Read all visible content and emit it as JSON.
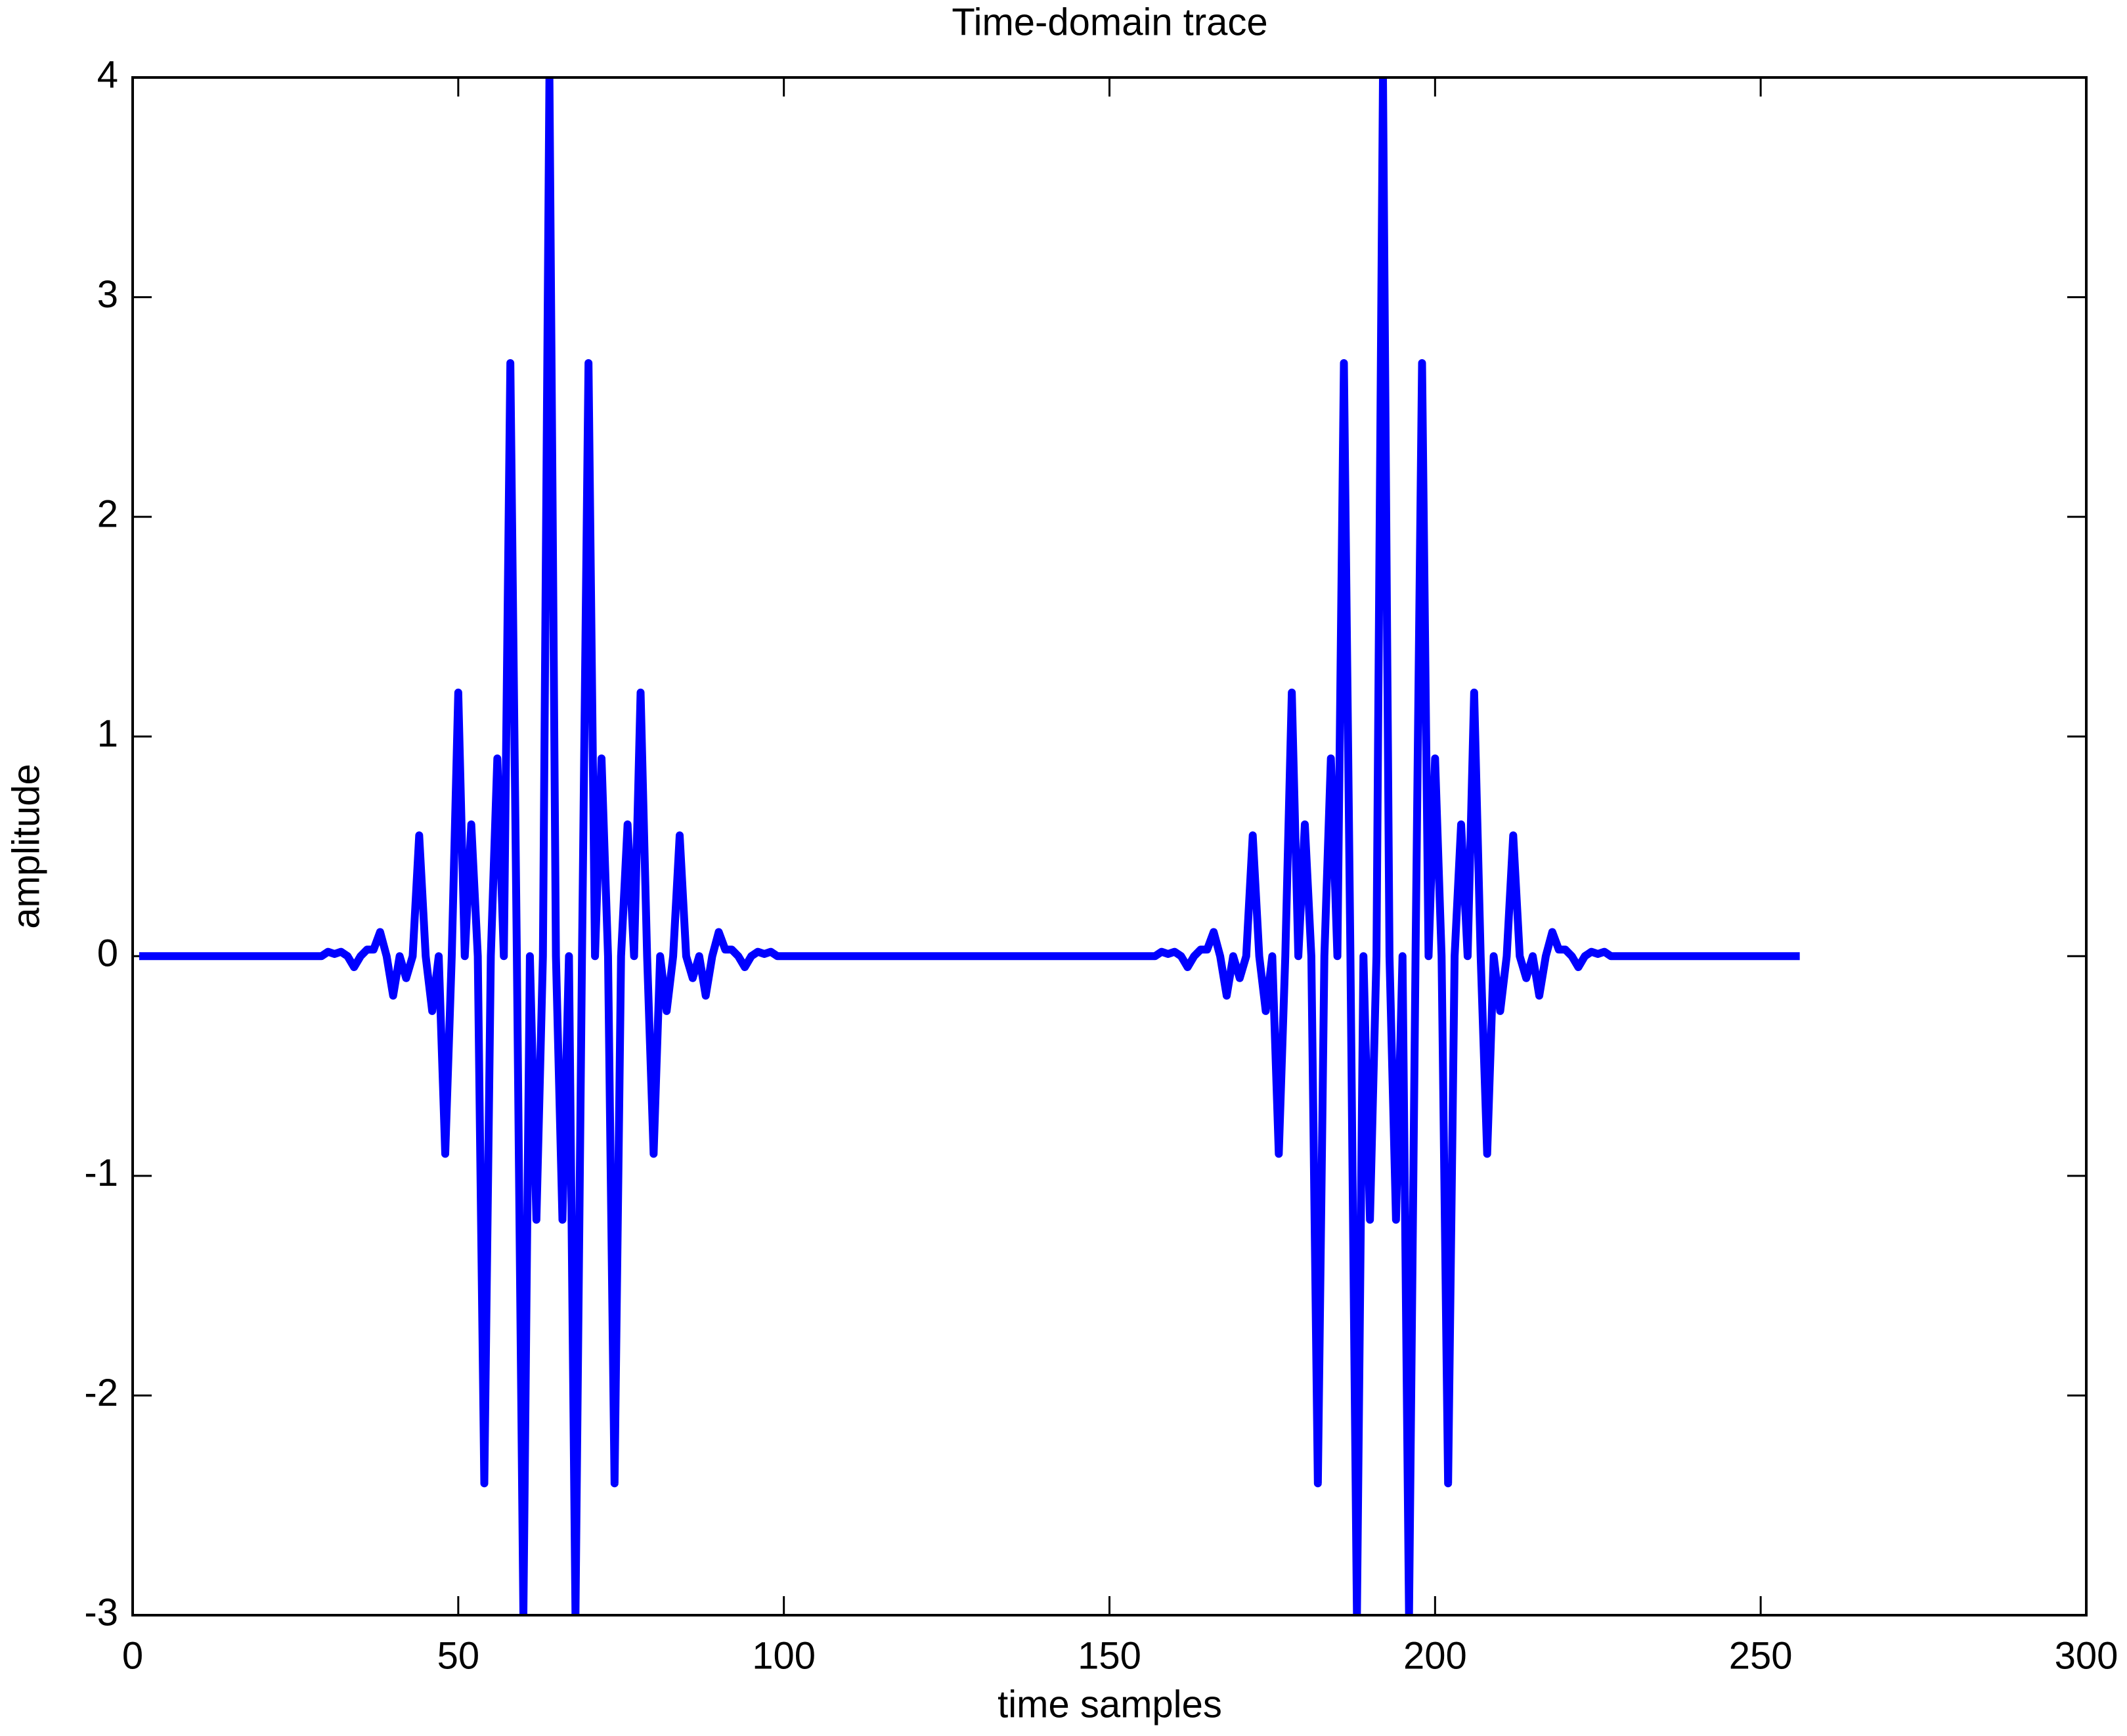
{
  "chart_data": {
    "type": "line",
    "title": "Time-domain trace",
    "x_label": "time samples",
    "y_label": "amplitude",
    "xlim": [
      0,
      300
    ],
    "ylim": [
      -3,
      4
    ],
    "xticks": [
      0,
      50,
      100,
      150,
      200,
      250,
      300
    ],
    "yticks": [
      -3,
      -2,
      -1,
      0,
      1,
      2,
      3,
      4
    ],
    "grid": false,
    "x": [
      1,
      2,
      3,
      4,
      5,
      6,
      7,
      8,
      9,
      10,
      11,
      12,
      13,
      14,
      15,
      16,
      17,
      18,
      19,
      20,
      21,
      22,
      23,
      24,
      25,
      26,
      27,
      28,
      29,
      30,
      31,
      32,
      33,
      34,
      35,
      36,
      37,
      38,
      39,
      40,
      41,
      42,
      43,
      44,
      45,
      46,
      47,
      48,
      49,
      50,
      51,
      52,
      53,
      54,
      55,
      56,
      57,
      58,
      59,
      60,
      61,
      62,
      63,
      64,
      65,
      66,
      67,
      68,
      69,
      70,
      71,
      72,
      73,
      74,
      75,
      76,
      77,
      78,
      79,
      80,
      81,
      82,
      83,
      84,
      85,
      86,
      87,
      88,
      89,
      90,
      91,
      92,
      93,
      94,
      95,
      96,
      97,
      98,
      99,
      100,
      101,
      102,
      103,
      104,
      105,
      106,
      107,
      108,
      109,
      110,
      111,
      112,
      113,
      114,
      115,
      116,
      117,
      118,
      119,
      120,
      121,
      122,
      123,
      124,
      125,
      126,
      127,
      128,
      129,
      130,
      131,
      132,
      133,
      134,
      135,
      136,
      137,
      138,
      139,
      140,
      141,
      142,
      143,
      144,
      145,
      146,
      147,
      148,
      149,
      150,
      151,
      152,
      153,
      154,
      155,
      156,
      157,
      158,
      159,
      160,
      161,
      162,
      163,
      164,
      165,
      166,
      167,
      168,
      169,
      170,
      171,
      172,
      173,
      174,
      175,
      176,
      177,
      178,
      179,
      180,
      181,
      182,
      183,
      184,
      185,
      186,
      187,
      188,
      189,
      190,
      191,
      192,
      193,
      194,
      195,
      196,
      197,
      198,
      199,
      200,
      201,
      202,
      203,
      204,
      205,
      206,
      207,
      208,
      209,
      210,
      211,
      212,
      213,
      214,
      215,
      216,
      217,
      218,
      219,
      220,
      221,
      222,
      223,
      224,
      225,
      226,
      227,
      228,
      229,
      230,
      231,
      232,
      233,
      234,
      235,
      236,
      237,
      238,
      239,
      240,
      241,
      242,
      243,
      244,
      245,
      246,
      247,
      248,
      249,
      250,
      251,
      252,
      253,
      254,
      255,
      256
    ],
    "series": [
      {
        "color": "#0000ff",
        "values": [
          0,
          0,
          0,
          0,
          0,
          0,
          0,
          0,
          0,
          0,
          0,
          0,
          0,
          0,
          0,
          0,
          0,
          0,
          0,
          0,
          0,
          0,
          0,
          0,
          0,
          0,
          0,
          0,
          0,
          0.02,
          0.01,
          0.02,
          0,
          -0.05,
          0,
          0.03,
          0.03,
          0.11,
          0,
          -0.18,
          0,
          -0.1,
          0,
          0.55,
          0,
          -0.25,
          0,
          -0.9,
          0,
          1.2,
          0,
          0.6,
          0,
          -2.4,
          0,
          0.9,
          0,
          2.7,
          0,
          -3,
          0,
          -1.2,
          0,
          4,
          0,
          -1.2,
          0,
          -3,
          0,
          2.7,
          0,
          0.9,
          0,
          -2.4,
          0,
          0.6,
          0,
          1.2,
          0,
          -0.9,
          0,
          -0.25,
          0,
          0.55,
          0,
          -0.1,
          0,
          -0.18,
          0,
          0.11,
          0.03,
          0.03,
          0,
          -0.05,
          0,
          0.02,
          0.01,
          0.02,
          0,
          0,
          0,
          0,
          0,
          0,
          0,
          0,
          0,
          0,
          0,
          0,
          0,
          0,
          0,
          0,
          0,
          0,
          0,
          0,
          0,
          0,
          0,
          0,
          0,
          0,
          0,
          0,
          0,
          0,
          0,
          0,
          0,
          0,
          0,
          0,
          0,
          0,
          0,
          0,
          0,
          0,
          0,
          0,
          0,
          0,
          0,
          0,
          0,
          0,
          0,
          0,
          0,
          0,
          0,
          0,
          0,
          0,
          0,
          0.02,
          0.01,
          0.02,
          0,
          -0.05,
          0,
          0.03,
          0.03,
          0.11,
          0,
          -0.18,
          0,
          -0.1,
          0,
          0.55,
          0,
          -0.25,
          0,
          -0.9,
          0,
          1.2,
          0,
          0.6,
          0,
          -2.4,
          0,
          0.9,
          0,
          2.7,
          0,
          -3,
          0,
          -1.2,
          0,
          4,
          0,
          -1.2,
          0,
          -3,
          0,
          2.7,
          0,
          0.9,
          0,
          -2.4,
          0,
          0.6,
          0,
          1.2,
          0,
          -0.9,
          0,
          -0.25,
          0,
          0.55,
          0,
          -0.1,
          0,
          -0.18,
          0,
          0.11,
          0.03,
          0.03,
          0,
          -0.05,
          0,
          0.02,
          0.01,
          0.02,
          0,
          0,
          0,
          0,
          0,
          0,
          0,
          0,
          0,
          0,
          0,
          0,
          0,
          0,
          0,
          0,
          0,
          0,
          0,
          0,
          0,
          0,
          0,
          0,
          0,
          0,
          0,
          0,
          0,
          0
        ]
      }
    ]
  }
}
